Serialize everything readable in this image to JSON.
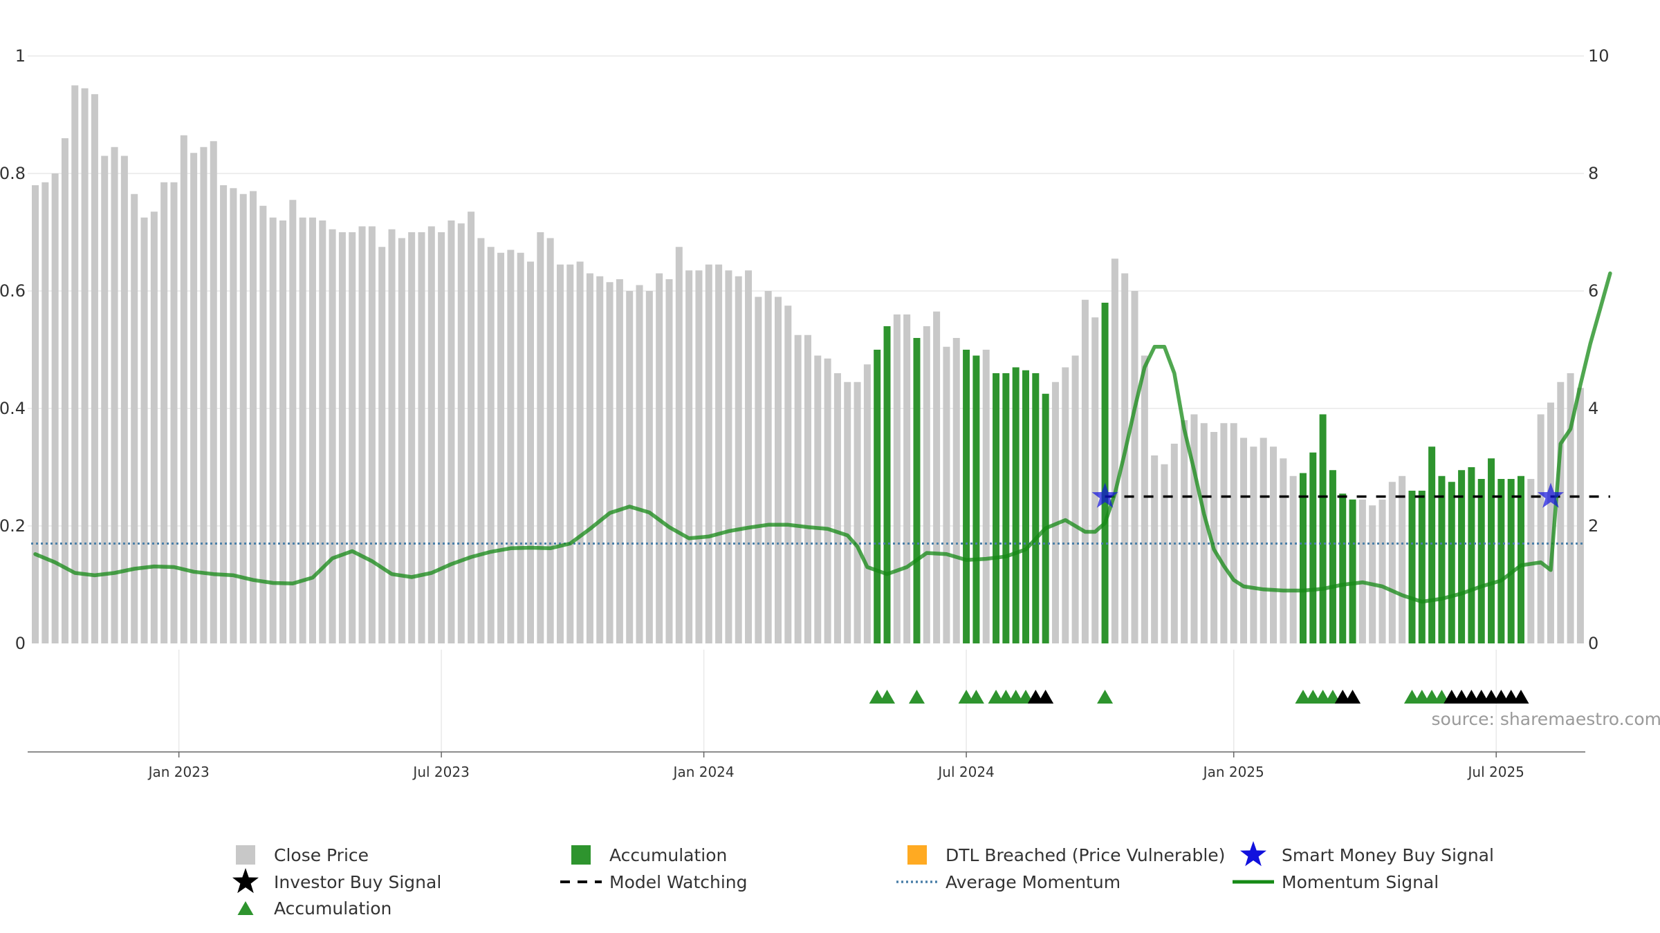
{
  "chart_data": {
    "type": "bar",
    "source_label": "source: sharemaestro.com",
    "left_axis": {
      "ticks": [
        0,
        0.2,
        0.4,
        0.6,
        0.8,
        1
      ],
      "tick_labels": [
        "0",
        "0.2",
        "0.4",
        "0.6",
        "0.8",
        "1"
      ],
      "ylim": [
        0,
        1
      ]
    },
    "right_axis": {
      "ticks": [
        0,
        2,
        4,
        6,
        8,
        10
      ],
      "tick_labels": [
        "0",
        "2",
        "4",
        "6",
        "8",
        "10"
      ],
      "ylim": [
        0,
        10
      ]
    },
    "x_axis": {
      "n_bars": 160,
      "ticks": [
        {
          "bar": 14.5,
          "label": "Jan 2023"
        },
        {
          "bar": 41,
          "label": "Jul 2023"
        },
        {
          "bar": 67.5,
          "label": "Jan 2024"
        },
        {
          "bar": 94,
          "label": "Jul 2024"
        },
        {
          "bar": 121,
          "label": "Jan 2025"
        },
        {
          "bar": 147.5,
          "label": "Jul 2025"
        }
      ]
    },
    "close_price": [
      0.78,
      0.785,
      0.8,
      0.86,
      0.95,
      0.945,
      0.935,
      0.83,
      0.845,
      0.83,
      0.765,
      0.725,
      0.735,
      0.785,
      0.785,
      0.865,
      0.835,
      0.845,
      0.855,
      0.78,
      0.775,
      0.765,
      0.77,
      0.745,
      0.725,
      0.72,
      0.755,
      0.725,
      0.725,
      0.72,
      0.705,
      0.7,
      0.7,
      0.71,
      0.71,
      0.675,
      0.705,
      0.69,
      0.7,
      0.7,
      0.71,
      0.7,
      0.72,
      0.715,
      0.735,
      0.69,
      0.675,
      0.665,
      0.67,
      0.665,
      0.65,
      0.7,
      0.69,
      0.645,
      0.645,
      0.65,
      0.63,
      0.625,
      0.615,
      0.62,
      0.6,
      0.61,
      0.6,
      0.63,
      0.62,
      0.675,
      0.635,
      0.635,
      0.645,
      0.645,
      0.635,
      0.625,
      0.635,
      0.59,
      0.6,
      0.59,
      0.575,
      0.525,
      0.525,
      0.49,
      0.485,
      0.46,
      0.445,
      0.445,
      0.475,
      0.5,
      0.54,
      0.56,
      0.56,
      0.52,
      0.54,
      0.565,
      0.505,
      0.52,
      0.5,
      0.49,
      0.5,
      0.46,
      0.46,
      0.47,
      0.465,
      0.46,
      0.425,
      0.445,
      0.47,
      0.49,
      0.585,
      0.555,
      0.58,
      0.655,
      0.63,
      0.6,
      0.49,
      0.32,
      0.305,
      0.34,
      0.38,
      0.39,
      0.375,
      0.36,
      0.375,
      0.375,
      0.35,
      0.335,
      0.35,
      0.335,
      0.315,
      0.285,
      0.29,
      0.325,
      0.39,
      0.295,
      0.255,
      0.245,
      0.245,
      0.235,
      0.245,
      0.275,
      0.285,
      0.26,
      0.26,
      0.335,
      0.285,
      0.275,
      0.295,
      0.3,
      0.28,
      0.315,
      0.28,
      0.28,
      0.285,
      0.28,
      0.39,
      0.41,
      0.445,
      0.46,
      0.435
    ],
    "accumulation_bars": [
      85,
      86,
      89,
      94,
      95,
      97,
      98,
      99,
      100,
      101,
      102,
      108,
      128,
      129,
      130,
      131,
      132,
      133,
      139,
      140,
      141,
      142,
      143,
      144,
      145,
      146,
      147,
      148,
      149,
      150
    ],
    "accumulation_triangles": [
      85,
      86,
      89,
      94,
      95,
      97,
      98,
      99,
      100,
      108,
      128,
      129,
      130,
      131,
      139,
      140,
      141,
      142
    ],
    "investor_buy_signals": [
      101,
      102,
      132,
      133,
      143,
      144,
      145,
      146,
      147,
      148,
      149,
      150
    ],
    "smart_money_buy_signals": [
      {
        "bar": 108,
        "value": 0.25
      },
      {
        "bar": 153,
        "value": 0.25
      }
    ],
    "average_momentum": 1.7,
    "model_watching_level": 0.25,
    "model_watching_range": [
      108,
      159
    ],
    "momentum_signal": [
      {
        "bar": 0,
        "value": 1.52
      },
      {
        "bar": 2,
        "value": 1.38
      },
      {
        "bar": 4,
        "value": 1.2
      },
      {
        "bar": 6,
        "value": 1.16
      },
      {
        "bar": 8,
        "value": 1.2
      },
      {
        "bar": 10,
        "value": 1.27
      },
      {
        "bar": 12,
        "value": 1.31
      },
      {
        "bar": 14,
        "value": 1.3
      },
      {
        "bar": 16,
        "value": 1.22
      },
      {
        "bar": 18,
        "value": 1.18
      },
      {
        "bar": 20,
        "value": 1.16
      },
      {
        "bar": 22,
        "value": 1.08
      },
      {
        "bar": 24,
        "value": 1.03
      },
      {
        "bar": 26,
        "value": 1.02
      },
      {
        "bar": 28,
        "value": 1.12
      },
      {
        "bar": 30,
        "value": 1.45
      },
      {
        "bar": 32,
        "value": 1.57
      },
      {
        "bar": 34,
        "value": 1.4
      },
      {
        "bar": 36,
        "value": 1.18
      },
      {
        "bar": 38,
        "value": 1.13
      },
      {
        "bar": 40,
        "value": 1.2
      },
      {
        "bar": 42,
        "value": 1.35
      },
      {
        "bar": 44,
        "value": 1.47
      },
      {
        "bar": 46,
        "value": 1.56
      },
      {
        "bar": 48,
        "value": 1.62
      },
      {
        "bar": 50,
        "value": 1.63
      },
      {
        "bar": 52,
        "value": 1.62
      },
      {
        "bar": 54,
        "value": 1.7
      },
      {
        "bar": 56,
        "value": 1.95
      },
      {
        "bar": 58,
        "value": 2.22
      },
      {
        "bar": 60,
        "value": 2.33
      },
      {
        "bar": 62,
        "value": 2.23
      },
      {
        "bar": 64,
        "value": 1.98
      },
      {
        "bar": 66,
        "value": 1.79
      },
      {
        "bar": 68,
        "value": 1.82
      },
      {
        "bar": 70,
        "value": 1.91
      },
      {
        "bar": 72,
        "value": 1.97
      },
      {
        "bar": 74,
        "value": 2.02
      },
      {
        "bar": 76,
        "value": 2.02
      },
      {
        "bar": 78,
        "value": 1.98
      },
      {
        "bar": 80,
        "value": 1.95
      },
      {
        "bar": 82,
        "value": 1.84
      },
      {
        "bar": 83,
        "value": 1.65
      },
      {
        "bar": 84,
        "value": 1.3
      },
      {
        "bar": 86,
        "value": 1.18
      },
      {
        "bar": 88,
        "value": 1.3
      },
      {
        "bar": 90,
        "value": 1.54
      },
      {
        "bar": 92,
        "value": 1.52
      },
      {
        "bar": 94,
        "value": 1.42
      },
      {
        "bar": 96,
        "value": 1.44
      },
      {
        "bar": 98,
        "value": 1.48
      },
      {
        "bar": 100,
        "value": 1.6
      },
      {
        "bar": 102,
        "value": 1.96
      },
      {
        "bar": 104,
        "value": 2.1
      },
      {
        "bar": 106,
        "value": 1.9
      },
      {
        "bar": 107,
        "value": 1.9
      },
      {
        "bar": 108,
        "value": 2.05
      },
      {
        "bar": 109,
        "value": 2.55
      },
      {
        "bar": 110,
        "value": 3.25
      },
      {
        "bar": 111,
        "value": 4.0
      },
      {
        "bar": 112,
        "value": 4.7
      },
      {
        "bar": 113,
        "value": 5.05
      },
      {
        "bar": 114,
        "value": 5.05
      },
      {
        "bar": 115,
        "value": 4.6
      },
      {
        "bar": 116,
        "value": 3.65
      },
      {
        "bar": 117,
        "value": 2.95
      },
      {
        "bar": 118,
        "value": 2.2
      },
      {
        "bar": 119,
        "value": 1.6
      },
      {
        "bar": 120,
        "value": 1.32
      },
      {
        "bar": 121,
        "value": 1.08
      },
      {
        "bar": 122,
        "value": 0.97
      },
      {
        "bar": 124,
        "value": 0.92
      },
      {
        "bar": 126,
        "value": 0.9
      },
      {
        "bar": 128,
        "value": 0.9
      },
      {
        "bar": 130,
        "value": 0.93
      },
      {
        "bar": 132,
        "value": 1.0
      },
      {
        "bar": 134,
        "value": 1.04
      },
      {
        "bar": 136,
        "value": 0.97
      },
      {
        "bar": 138,
        "value": 0.82
      },
      {
        "bar": 140,
        "value": 0.71
      },
      {
        "bar": 142,
        "value": 0.76
      },
      {
        "bar": 144,
        "value": 0.85
      },
      {
        "bar": 146,
        "value": 0.97
      },
      {
        "bar": 148,
        "value": 1.07
      },
      {
        "bar": 150,
        "value": 1.33
      },
      {
        "bar": 152,
        "value": 1.38
      },
      {
        "bar": 153,
        "value": 1.25
      },
      {
        "bar": 154,
        "value": 3.4
      },
      {
        "bar": 155,
        "value": 3.65
      },
      {
        "bar": 156,
        "value": 4.4
      },
      {
        "bar": 157,
        "value": 5.1
      },
      {
        "bar": 158,
        "value": 5.7
      },
      {
        "bar": 159,
        "value": 6.3
      }
    ],
    "colors": {
      "close_price": "#c8c8c8",
      "accumulation": "#2e942e",
      "dtl_breached": "#ffaa22",
      "investor_buy": "#000000",
      "smart_money": "#1111dd",
      "average_momentum": "#4a7fa8",
      "model_watching": "#000000",
      "momentum": "#168a16",
      "grid": "#e9e9e9"
    },
    "legend": [
      {
        "key": "close_price",
        "label": "Close Price",
        "symbol": "gray-square"
      },
      {
        "key": "accumulation_bar",
        "label": "Accumulation",
        "symbol": "green-square"
      },
      {
        "key": "dtl_breached",
        "label": "DTL Breached (Price Vulnerable)",
        "symbol": "orange-square"
      },
      {
        "key": "smart_money",
        "label": "Smart Money Buy Signal",
        "symbol": "blue-star"
      },
      {
        "key": "investor_buy",
        "label": "Investor Buy Signal",
        "symbol": "black-star"
      },
      {
        "key": "model_watching",
        "label": "Model Watching",
        "symbol": "black-dash"
      },
      {
        "key": "average_momentum",
        "label": "Average Momentum",
        "symbol": "blue-dotted"
      },
      {
        "key": "momentum_signal",
        "label": "Momentum Signal",
        "symbol": "green-line"
      },
      {
        "key": "accumulation_triangle",
        "label": "Accumulation",
        "symbol": "green-triangle"
      }
    ]
  }
}
